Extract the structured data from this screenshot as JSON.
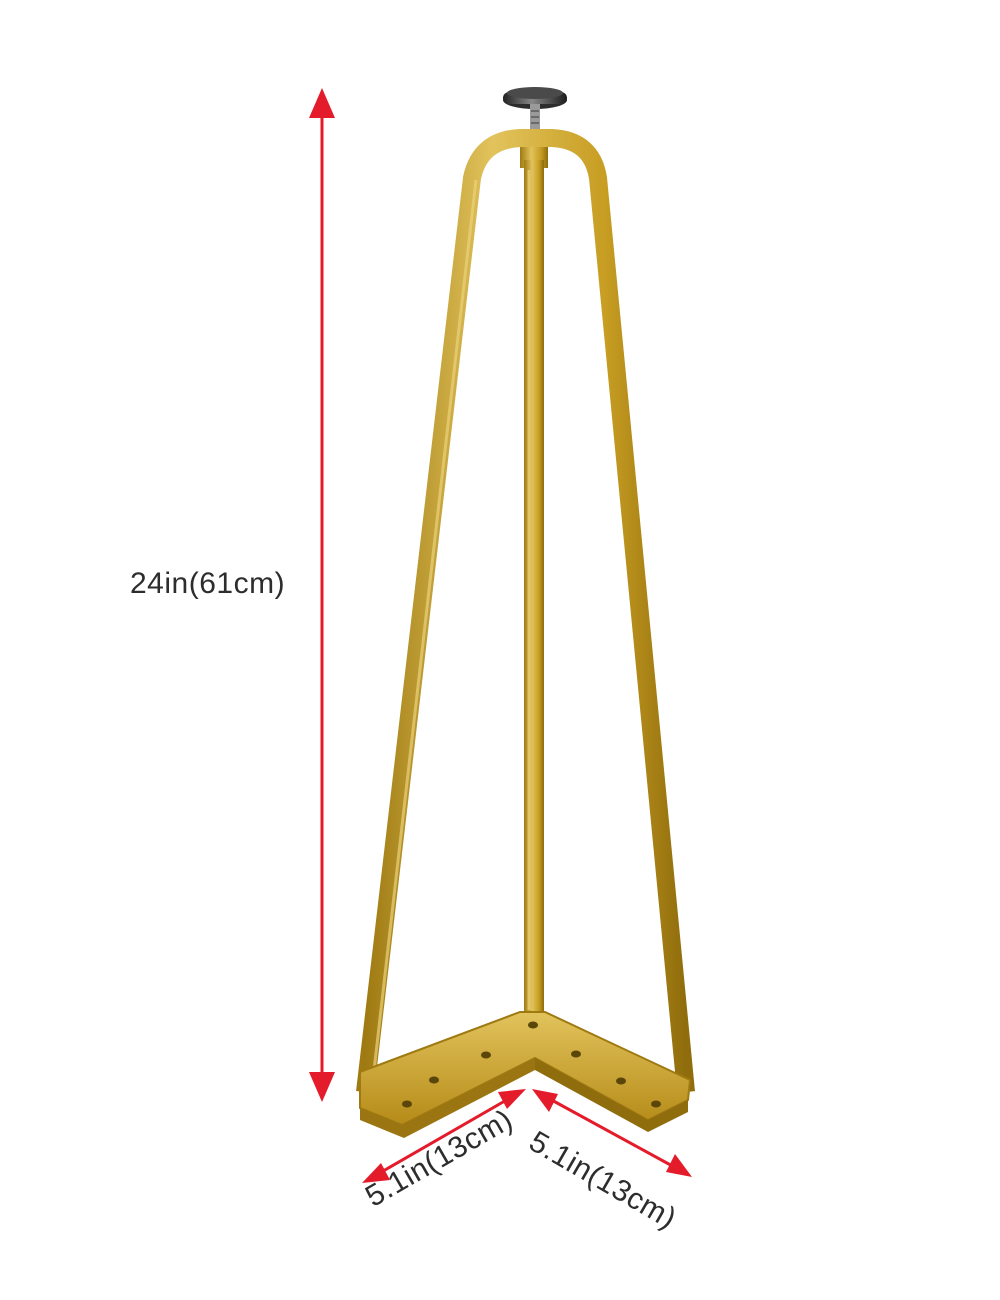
{
  "product": {
    "object": "hairpin-table-leg",
    "finish_color": "#c79d22",
    "finish_shadow_color": "#9f7a12",
    "finish_highlight_color": "#e2c35c"
  },
  "dimensions": {
    "height_label": "24in(61cm)",
    "width_left_label": "5.1in(13cm)",
    "width_right_label": "5.1in(13cm)",
    "arrow_color": "#e41b2a"
  }
}
